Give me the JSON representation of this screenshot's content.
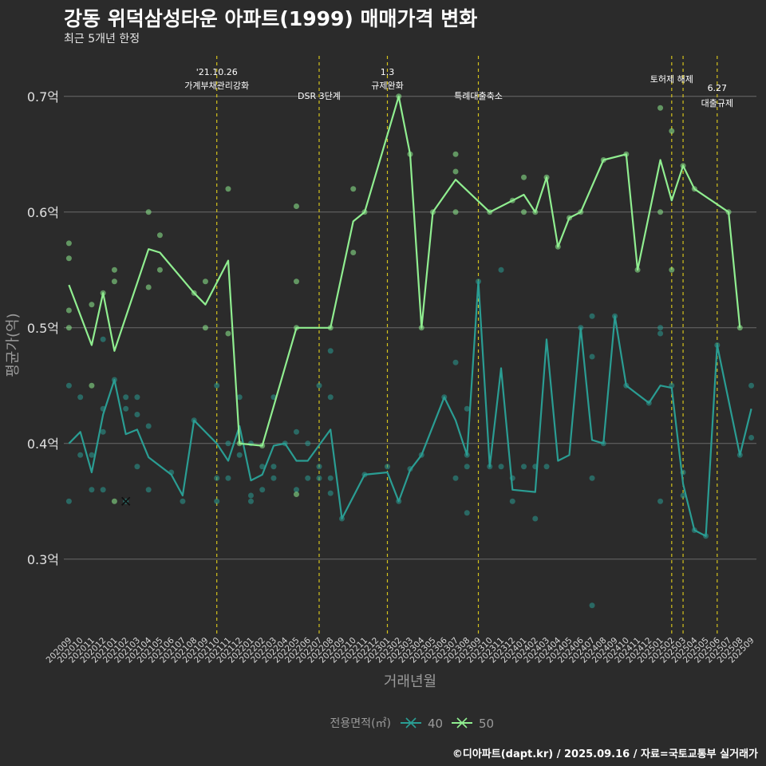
{
  "title": "강동 위덕삼성타운 아파트(1999) 매매가격 변화",
  "subtitle": "최근 5개년 한정",
  "caption": "©디아파트(dapt.kr) / 2025.09.16 / 자료=국토교통부 실거래가",
  "chart_data": {
    "type": "line",
    "xlabel": "거래년월",
    "ylabel": "평균가(억)",
    "ylim": [
      0.235,
      0.735
    ],
    "yticks": [
      0.3,
      0.4,
      0.5,
      0.6,
      0.7
    ],
    "ytick_labels": [
      "0.3억",
      "0.4억",
      "0.5억",
      "0.6억",
      "0.7억"
    ],
    "grid": true,
    "legend": {
      "title": "전용면적(㎡)",
      "position": "bottom"
    },
    "categories": [
      "202009",
      "202010",
      "202011",
      "202012",
      "202101",
      "202102",
      "202103",
      "202104",
      "202105",
      "202106",
      "202107",
      "202108",
      "202109",
      "202110",
      "202111",
      "202112",
      "202201",
      "202202",
      "202203",
      "202204",
      "202205",
      "202206",
      "202207",
      "202208",
      "202209",
      "202210",
      "202211",
      "202212",
      "202301",
      "202302",
      "202303",
      "202304",
      "202305",
      "202306",
      "202307",
      "202308",
      "202309",
      "202310",
      "202311",
      "202312",
      "202401",
      "202402",
      "202403",
      "202404",
      "202405",
      "202406",
      "202407",
      "202408",
      "202409",
      "202410",
      "202411",
      "202412",
      "202501",
      "202502",
      "202503",
      "202504",
      "202505",
      "202506",
      "202507",
      "202508",
      "202509"
    ],
    "tick_categories": [
      "202009",
      "202010",
      "202011",
      "202012",
      "202101",
      "202102",
      "202103",
      "202104",
      "202105",
      "202106",
      "202107",
      "202108",
      "202109",
      "202110",
      "202111",
      "202112",
      "202201",
      "202202",
      "202203",
      "202204",
      "202205",
      "202206",
      "202207",
      "202208",
      "202209",
      "202210",
      "202211",
      "202212",
      "202301",
      "202302",
      "202303",
      "202304",
      "202305",
      "202306",
      "202307",
      "202308",
      "202309",
      "202310",
      "202311",
      "202312",
      "202401",
      "202402",
      "202403",
      "202404",
      "202405",
      "202406",
      "202407",
      "202408",
      "202409",
      "202410",
      "202411",
      "202412",
      "202501",
      "202502",
      "202503",
      "202504",
      "202505",
      "202506",
      "202507",
      "202508",
      "202509"
    ],
    "series": [
      {
        "name": "40",
        "color": "#2a9d93",
        "line": [
          [
            "202009",
            0.4
          ],
          [
            "202010",
            0.41
          ],
          [
            "202011",
            0.375
          ],
          [
            "202012",
            0.425
          ],
          [
            "202101",
            0.455
          ],
          [
            "202102",
            0.408
          ],
          [
            "202103",
            0.412
          ],
          [
            "202104",
            0.388
          ],
          [
            "202106",
            0.373
          ],
          [
            "202107",
            0.355
          ],
          [
            "202108",
            0.42
          ],
          [
            "202110",
            0.4
          ],
          [
            "202111",
            0.385
          ],
          [
            "202112",
            0.415
          ],
          [
            "202201",
            0.368
          ],
          [
            "202202",
            0.373
          ],
          [
            "202203",
            0.398
          ],
          [
            "202204",
            0.4
          ],
          [
            "202205",
            0.385
          ],
          [
            "202206",
            0.385
          ],
          [
            "202208",
            0.412
          ],
          [
            "202209",
            0.335
          ],
          [
            "202211",
            0.373
          ],
          [
            "202301",
            0.375
          ],
          [
            "202302",
            0.35
          ],
          [
            "202303",
            0.377
          ],
          [
            "202304",
            0.39
          ],
          [
            "202306",
            0.44
          ],
          [
            "202307",
            0.42
          ],
          [
            "202308",
            0.39
          ],
          [
            "202309",
            0.54
          ],
          [
            "202310",
            0.38
          ],
          [
            "202311",
            0.465
          ],
          [
            "202312",
            0.36
          ],
          [
            "202402",
            0.358
          ],
          [
            "202403",
            0.49
          ],
          [
            "202404",
            0.385
          ],
          [
            "202405",
            0.39
          ],
          [
            "202406",
            0.5
          ],
          [
            "202407",
            0.403
          ],
          [
            "202408",
            0.4
          ],
          [
            "202409",
            0.51
          ],
          [
            "202410",
            0.45
          ],
          [
            "202412",
            0.435
          ],
          [
            "202501",
            0.45
          ],
          [
            "202502",
            0.448
          ],
          [
            "202503",
            0.365
          ],
          [
            "202504",
            0.325
          ],
          [
            "202505",
            0.32
          ],
          [
            "202506",
            0.485
          ],
          [
            "202508",
            0.39
          ],
          [
            "202509",
            0.43
          ]
        ],
        "points": [
          [
            "202009",
            0.45
          ],
          [
            "202009",
            0.35
          ],
          [
            "202010",
            0.44
          ],
          [
            "202010",
            0.39
          ],
          [
            "202011",
            0.36
          ],
          [
            "202011",
            0.39
          ],
          [
            "202012",
            0.49
          ],
          [
            "202012",
            0.43
          ],
          [
            "202012",
            0.36
          ],
          [
            "202012",
            0.41
          ],
          [
            "202101",
            0.455
          ],
          [
            "202102",
            0.44
          ],
          [
            "202102",
            0.43
          ],
          [
            "202102",
            0.35
          ],
          [
            "202103",
            0.44
          ],
          [
            "202103",
            0.425
          ],
          [
            "202103",
            0.38
          ],
          [
            "202104",
            0.415
          ],
          [
            "202104",
            0.36
          ],
          [
            "202106",
            0.375
          ],
          [
            "202107",
            0.35
          ],
          [
            "202108",
            0.42
          ],
          [
            "202110",
            0.45
          ],
          [
            "202110",
            0.37
          ],
          [
            "202110",
            0.35
          ],
          [
            "202111",
            0.4
          ],
          [
            "202111",
            0.37
          ],
          [
            "202112",
            0.44
          ],
          [
            "202112",
            0.39
          ],
          [
            "202201",
            0.4
          ],
          [
            "202201",
            0.355
          ],
          [
            "202201",
            0.35
          ],
          [
            "202202",
            0.38
          ],
          [
            "202202",
            0.36
          ],
          [
            "202203",
            0.44
          ],
          [
            "202203",
            0.38
          ],
          [
            "202203",
            0.37
          ],
          [
            "202204",
            0.4
          ],
          [
            "202205",
            0.41
          ],
          [
            "202205",
            0.36
          ],
          [
            "202206",
            0.4
          ],
          [
            "202206",
            0.37
          ],
          [
            "202207",
            0.45
          ],
          [
            "202207",
            0.38
          ],
          [
            "202207",
            0.37
          ],
          [
            "202208",
            0.48
          ],
          [
            "202208",
            0.44
          ],
          [
            "202208",
            0.37
          ],
          [
            "202208",
            0.357
          ],
          [
            "202209",
            0.335
          ],
          [
            "202211",
            0.373
          ],
          [
            "202301",
            0.38
          ],
          [
            "202302",
            0.35
          ],
          [
            "202303",
            0.378
          ],
          [
            "202304",
            0.39
          ],
          [
            "202306",
            0.44
          ],
          [
            "202307",
            0.47
          ],
          [
            "202307",
            0.37
          ],
          [
            "202308",
            0.43
          ],
          [
            "202308",
            0.39
          ],
          [
            "202308",
            0.38
          ],
          [
            "202308",
            0.34
          ],
          [
            "202309",
            0.54
          ],
          [
            "202310",
            0.38
          ],
          [
            "202311",
            0.55
          ],
          [
            "202311",
            0.38
          ],
          [
            "202312",
            0.37
          ],
          [
            "202312",
            0.35
          ],
          [
            "202401",
            0.38
          ],
          [
            "202402",
            0.38
          ],
          [
            "202402",
            0.335
          ],
          [
            "202403",
            0.38
          ],
          [
            "202406",
            0.5
          ],
          [
            "202407",
            0.51
          ],
          [
            "202407",
            0.475
          ],
          [
            "202407",
            0.37
          ],
          [
            "202407",
            0.26
          ],
          [
            "202408",
            0.4
          ],
          [
            "202409",
            0.51
          ],
          [
            "202410",
            0.45
          ],
          [
            "202412",
            0.435
          ],
          [
            "202501",
            0.5
          ],
          [
            "202501",
            0.495
          ],
          [
            "202501",
            0.35
          ],
          [
            "202502",
            0.45
          ],
          [
            "202503",
            0.375
          ],
          [
            "202503",
            0.355
          ],
          [
            "202504",
            0.325
          ],
          [
            "202505",
            0.32
          ],
          [
            "202506",
            0.485
          ],
          [
            "202508",
            0.39
          ],
          [
            "202509",
            0.45
          ],
          [
            "202509",
            0.405
          ]
        ]
      },
      {
        "name": "50",
        "color": "#90ee90",
        "line": [
          [
            "202009",
            0.537
          ],
          [
            "202011",
            0.485
          ],
          [
            "202012",
            0.53
          ],
          [
            "202101",
            0.48
          ],
          [
            "202104",
            0.568
          ],
          [
            "202105",
            0.565
          ],
          [
            "202108",
            0.53
          ],
          [
            "202109",
            0.52
          ],
          [
            "202111",
            0.558
          ],
          [
            "202112",
            0.4
          ],
          [
            "202202",
            0.398
          ],
          [
            "202205",
            0.5
          ],
          [
            "202208",
            0.5
          ],
          [
            "202210",
            0.592
          ],
          [
            "202211",
            0.6
          ],
          [
            "202302",
            0.7
          ],
          [
            "202303",
            0.65
          ],
          [
            "202304",
            0.5
          ],
          [
            "202305",
            0.6
          ],
          [
            "202307",
            0.628
          ],
          [
            "202310",
            0.6
          ],
          [
            "202312",
            0.61
          ],
          [
            "202401",
            0.615
          ],
          [
            "202402",
            0.6
          ],
          [
            "202403",
            0.63
          ],
          [
            "202404",
            0.57
          ],
          [
            "202405",
            0.595
          ],
          [
            "202406",
            0.6
          ],
          [
            "202408",
            0.645
          ],
          [
            "202410",
            0.65
          ],
          [
            "202411",
            0.55
          ],
          [
            "202501",
            0.645
          ],
          [
            "202502",
            0.61
          ],
          [
            "202503",
            0.64
          ],
          [
            "202504",
            0.62
          ],
          [
            "202507",
            0.6
          ],
          [
            "202508",
            0.5
          ]
        ],
        "points": [
          [
            "202009",
            0.573
          ],
          [
            "202009",
            0.56
          ],
          [
            "202009",
            0.515
          ],
          [
            "202009",
            0.5
          ],
          [
            "202011",
            0.52
          ],
          [
            "202011",
            0.45
          ],
          [
            "202012",
            0.53
          ],
          [
            "202101",
            0.55
          ],
          [
            "202101",
            0.54
          ],
          [
            "202101",
            0.35
          ],
          [
            "202104",
            0.6
          ],
          [
            "202104",
            0.535
          ],
          [
            "202105",
            0.58
          ],
          [
            "202105",
            0.55
          ],
          [
            "202108",
            0.53
          ],
          [
            "202109",
            0.54
          ],
          [
            "202109",
            0.5
          ],
          [
            "202111",
            0.62
          ],
          [
            "202111",
            0.495
          ],
          [
            "202112",
            0.4
          ],
          [
            "202202",
            0.398
          ],
          [
            "202205",
            0.605
          ],
          [
            "202205",
            0.54
          ],
          [
            "202205",
            0.5
          ],
          [
            "202205",
            0.356
          ],
          [
            "202208",
            0.5
          ],
          [
            "202210",
            0.62
          ],
          [
            "202210",
            0.565
          ],
          [
            "202211",
            0.6
          ],
          [
            "202302",
            0.7
          ],
          [
            "202303",
            0.65
          ],
          [
            "202304",
            0.5
          ],
          [
            "202305",
            0.6
          ],
          [
            "202307",
            0.65
          ],
          [
            "202307",
            0.635
          ],
          [
            "202307",
            0.6
          ],
          [
            "202310",
            0.6
          ],
          [
            "202312",
            0.61
          ],
          [
            "202401",
            0.63
          ],
          [
            "202401",
            0.6
          ],
          [
            "202402",
            0.6
          ],
          [
            "202403",
            0.63
          ],
          [
            "202404",
            0.57
          ],
          [
            "202405",
            0.595
          ],
          [
            "202406",
            0.6
          ],
          [
            "202408",
            0.645
          ],
          [
            "202410",
            0.65
          ],
          [
            "202411",
            0.55
          ],
          [
            "202501",
            0.69
          ],
          [
            "202501",
            0.6
          ],
          [
            "202502",
            0.67
          ],
          [
            "202502",
            0.55
          ],
          [
            "202503",
            0.64
          ],
          [
            "202504",
            0.62
          ],
          [
            "202507",
            0.6
          ],
          [
            "202508",
            0.5
          ]
        ]
      }
    ],
    "cross_markers": [
      [
        "202102",
        0.35
      ]
    ],
    "annotations": [
      {
        "x": "202110",
        "lines": [
          "'21.10.26",
          "가계부채관리강화"
        ],
        "level": "top"
      },
      {
        "x": "202207",
        "lines": [
          "DSR 3단계"
        ],
        "level": "low"
      },
      {
        "x": "202301",
        "lines": [
          "1.3",
          "규제완화"
        ],
        "level": "top"
      },
      {
        "x": "202309",
        "lines": [
          "특례대출축소"
        ],
        "level": "low"
      },
      {
        "x": "202502",
        "lines": [
          "토허제 해제"
        ],
        "level": "mid"
      },
      {
        "x": "202503",
        "lines": [],
        "level": "none"
      },
      {
        "x": "202506",
        "lines": [
          "6.27",
          "대출규제"
        ],
        "level": "right"
      }
    ]
  }
}
